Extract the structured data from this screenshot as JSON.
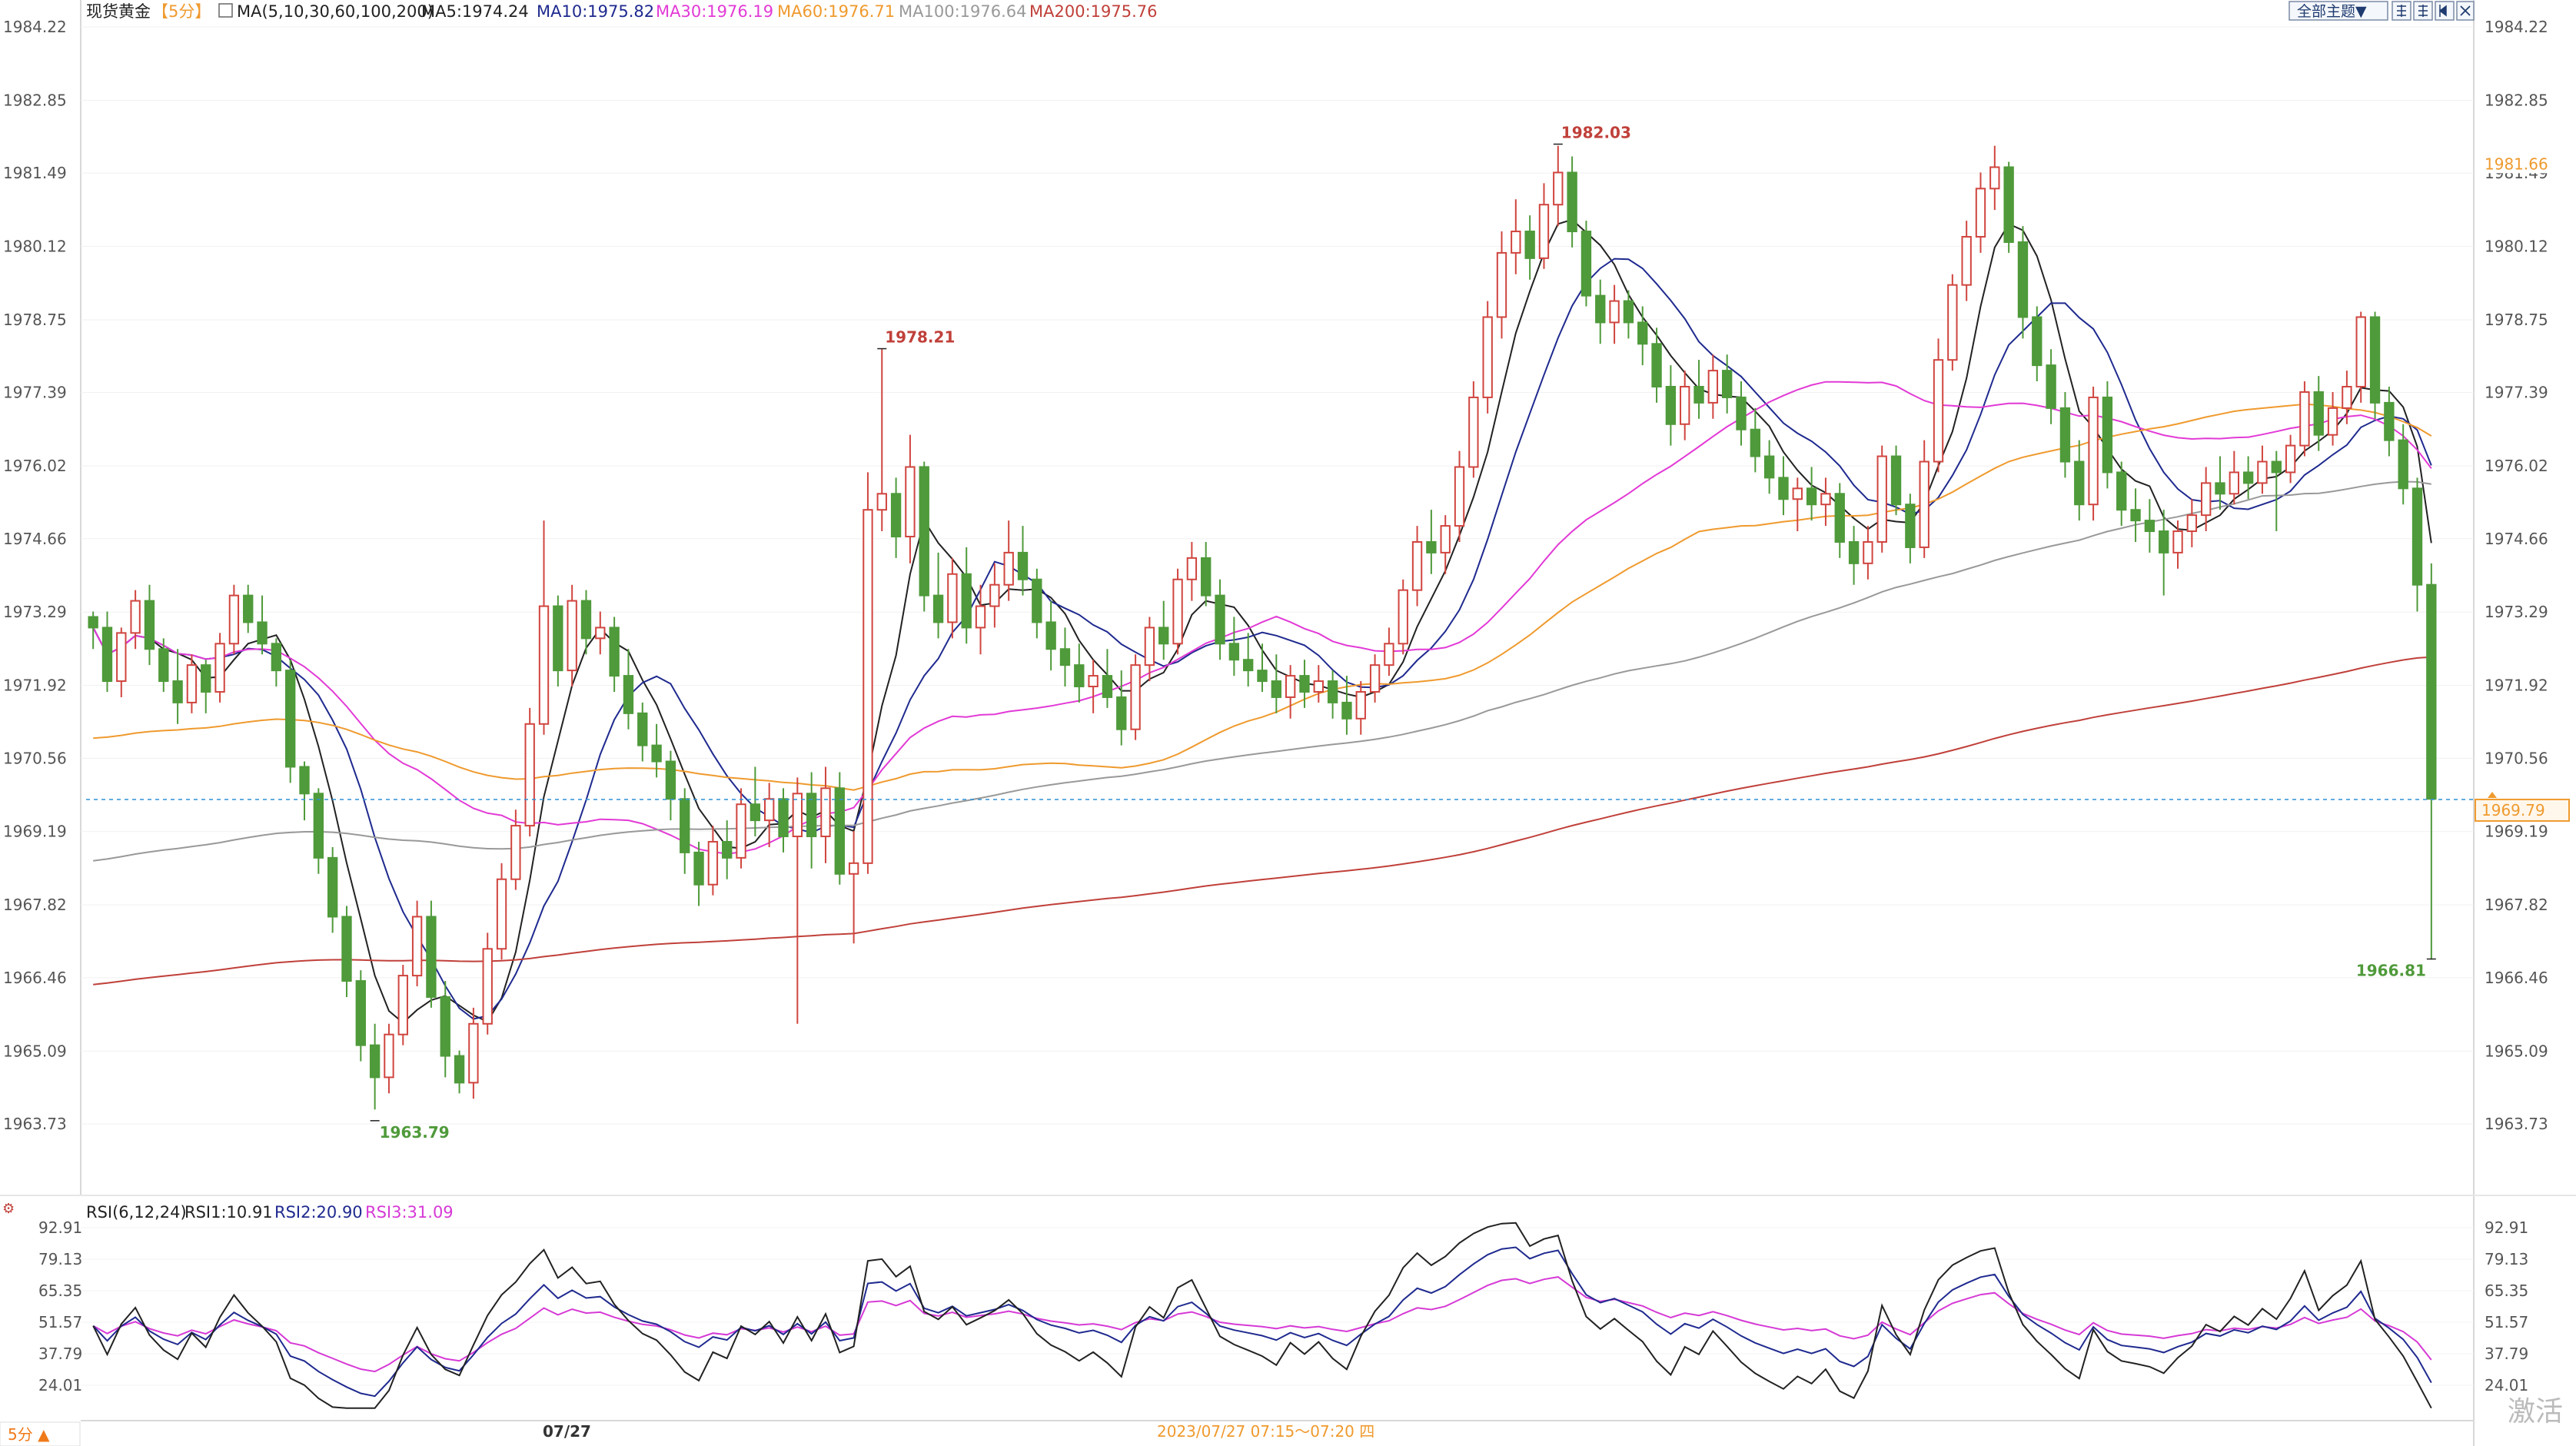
{
  "header": {
    "instrument": "现货黄金",
    "period_tag": "【5分】",
    "ma_label": "MA(5,10,30,60,100,200)",
    "ma5": "MA5:1974.24",
    "ma10": "MA10:1975.82",
    "ma30": "MA30:1976.19",
    "ma60": "MA60:1976.71",
    "ma100": "MA100:1976.64",
    "ma200": "MA200:1975.76"
  },
  "toolbar": {
    "theme_button": "全部主题▼"
  },
  "rsi_header": {
    "label": "RSI(6,12,24)",
    "rsi1": "RSI1:10.91",
    "rsi2": "RSI2:20.90",
    "rsi3": "RSI3:31.09"
  },
  "footer": {
    "period_button": "5分 ▲",
    "date_label": "07/27",
    "crosshair_time": "2023/07/27 07:15～07:20 四"
  },
  "watermark": "激活",
  "colors": {
    "up": "#d0453f",
    "down": "#4f9a3a",
    "ma5": "#222222",
    "ma10": "#1f2a8f",
    "ma30": "#e23ad6",
    "ma60": "#ef9a2e",
    "ma100": "#999999",
    "ma200": "#c0403a",
    "rsi1": "#222222",
    "rsi2": "#1f2a8f",
    "rsi3": "#d63ad6",
    "current_price": "#ef9a2e"
  },
  "chart_data": [
    {
      "type": "candlestick",
      "title": "现货黄金【5分】",
      "y_ticks": [
        1984.22,
        1982.85,
        1981.49,
        1980.12,
        1978.75,
        1977.39,
        1976.02,
        1974.66,
        1973.29,
        1971.92,
        1970.56,
        1969.19,
        1967.82,
        1966.46,
        1965.09,
        1963.73
      ],
      "y_tick_labels": [
        "1984.22",
        "1982.85",
        "1981.49",
        "1980.12",
        "1978.75",
        "1977.39",
        "1976.02",
        "1974.66",
        "1973.29",
        "1971.92",
        "1970.56",
        "1969.19",
        "1967.82",
        "1966.46",
        "1965.09",
        "1963.73"
      ],
      "ylim": [
        1963.3,
        1984.22
      ],
      "annotations": [
        {
          "label": "1978.21",
          "value": 1978.21,
          "kind": "local_high"
        },
        {
          "label": "1982.03",
          "value": 1982.03,
          "kind": "session_high"
        },
        {
          "label": "1963.79",
          "value": 1963.79,
          "kind": "session_low"
        },
        {
          "label": "1966.81",
          "value": 1966.81,
          "kind": "last_low"
        }
      ],
      "right_labels": [
        {
          "label": "1981.66",
          "value": 1981.66,
          "color": "#ef9a2e"
        },
        {
          "label": "1969.79",
          "value": 1969.79,
          "color": "#ef9a2e"
        }
      ],
      "current_price": 1969.79,
      "x_label": "07/27",
      "candles": [
        [
          1973.2,
          1973.3,
          1972.6,
          1973.0
        ],
        [
          1973.0,
          1973.3,
          1971.8,
          1972.0
        ],
        [
          1972.0,
          1973.0,
          1971.7,
          1972.9
        ],
        [
          1972.9,
          1973.7,
          1972.6,
          1973.5
        ],
        [
          1973.5,
          1973.8,
          1972.3,
          1972.6
        ],
        [
          1972.6,
          1972.8,
          1971.8,
          1972.0
        ],
        [
          1972.0,
          1972.6,
          1971.2,
          1971.6
        ],
        [
          1971.6,
          1972.5,
          1971.4,
          1972.3
        ],
        [
          1972.3,
          1972.4,
          1971.4,
          1971.8
        ],
        [
          1971.8,
          1972.9,
          1971.6,
          1972.7
        ],
        [
          1972.7,
          1973.8,
          1972.5,
          1973.6
        ],
        [
          1973.6,
          1973.8,
          1972.9,
          1973.1
        ],
        [
          1973.1,
          1973.6,
          1972.5,
          1972.7
        ],
        [
          1972.7,
          1972.8,
          1971.9,
          1972.2
        ],
        [
          1972.2,
          1972.4,
          1970.1,
          1970.4
        ],
        [
          1970.4,
          1970.5,
          1969.4,
          1969.9
        ],
        [
          1969.9,
          1970.0,
          1968.4,
          1968.7
        ],
        [
          1968.7,
          1968.9,
          1967.3,
          1967.6
        ],
        [
          1967.6,
          1967.8,
          1966.1,
          1966.4
        ],
        [
          1966.4,
          1966.6,
          1964.9,
          1965.2
        ],
        [
          1965.2,
          1965.6,
          1964.0,
          1964.6
        ],
        [
          1964.6,
          1965.6,
          1964.3,
          1965.4
        ],
        [
          1965.4,
          1966.7,
          1965.2,
          1966.5
        ],
        [
          1966.5,
          1967.9,
          1966.3,
          1967.6
        ],
        [
          1967.6,
          1967.9,
          1965.9,
          1966.1
        ],
        [
          1966.1,
          1966.4,
          1964.6,
          1965.0
        ],
        [
          1965.0,
          1965.1,
          1964.3,
          1964.5
        ],
        [
          1964.5,
          1965.9,
          1964.2,
          1965.6
        ],
        [
          1965.6,
          1967.3,
          1965.4,
          1967.0
        ],
        [
          1967.0,
          1968.6,
          1966.8,
          1968.3
        ],
        [
          1968.3,
          1969.6,
          1968.1,
          1969.3
        ],
        [
          1969.3,
          1971.5,
          1969.1,
          1971.2
        ],
        [
          1971.2,
          1975.0,
          1971.0,
          1973.4
        ],
        [
          1973.4,
          1973.6,
          1971.9,
          1972.2
        ],
        [
          1972.2,
          1973.8,
          1971.9,
          1973.5
        ],
        [
          1973.5,
          1973.7,
          1972.5,
          1972.8
        ],
        [
          1972.8,
          1973.3,
          1972.5,
          1973.0
        ],
        [
          1973.0,
          1973.2,
          1971.8,
          1972.1
        ],
        [
          1972.1,
          1972.6,
          1971.1,
          1971.4
        ],
        [
          1971.4,
          1971.6,
          1970.5,
          1970.8
        ],
        [
          1970.8,
          1971.2,
          1970.2,
          1970.5
        ],
        [
          1970.5,
          1970.7,
          1969.4,
          1969.8
        ],
        [
          1969.8,
          1970.0,
          1968.4,
          1968.8
        ],
        [
          1968.8,
          1969.0,
          1967.8,
          1968.2
        ],
        [
          1968.2,
          1969.3,
          1968.0,
          1969.0
        ],
        [
          1969.0,
          1969.4,
          1968.3,
          1968.7
        ],
        [
          1968.7,
          1970.0,
          1968.5,
          1969.7
        ],
        [
          1969.7,
          1970.4,
          1969.1,
          1969.4
        ],
        [
          1969.4,
          1970.1,
          1968.9,
          1969.8
        ],
        [
          1969.8,
          1970.0,
          1968.8,
          1969.1
        ],
        [
          1969.1,
          1970.2,
          1965.6,
          1969.9
        ],
        [
          1969.9,
          1970.3,
          1968.5,
          1969.1
        ],
        [
          1969.1,
          1970.4,
          1968.6,
          1970.0
        ],
        [
          1970.0,
          1970.3,
          1968.2,
          1968.4
        ],
        [
          1968.4,
          1969.2,
          1967.1,
          1968.6
        ],
        [
          1968.6,
          1975.9,
          1968.4,
          1975.2
        ],
        [
          1975.2,
          1978.2,
          1974.8,
          1975.5
        ],
        [
          1975.5,
          1975.8,
          1974.3,
          1974.7
        ],
        [
          1974.7,
          1976.6,
          1974.2,
          1976.0
        ],
        [
          1976.0,
          1976.1,
          1973.3,
          1973.6
        ],
        [
          1973.6,
          1974.4,
          1972.8,
          1973.1
        ],
        [
          1973.1,
          1974.3,
          1972.8,
          1974.0
        ],
        [
          1974.0,
          1974.5,
          1972.7,
          1973.0
        ],
        [
          1973.0,
          1973.8,
          1972.5,
          1973.4
        ],
        [
          1973.4,
          1974.2,
          1973.0,
          1973.8
        ],
        [
          1973.8,
          1975.0,
          1973.5,
          1974.4
        ],
        [
          1974.4,
          1974.9,
          1973.6,
          1973.9
        ],
        [
          1973.9,
          1974.1,
          1972.8,
          1973.1
        ],
        [
          1973.1,
          1973.5,
          1972.2,
          1972.6
        ],
        [
          1972.6,
          1973.0,
          1971.9,
          1972.3
        ],
        [
          1972.3,
          1972.7,
          1971.6,
          1971.9
        ],
        [
          1971.9,
          1972.4,
          1971.4,
          1972.1
        ],
        [
          1972.1,
          1972.6,
          1971.5,
          1971.7
        ],
        [
          1971.7,
          1972.2,
          1970.8,
          1971.1
        ],
        [
          1971.1,
          1972.5,
          1970.9,
          1972.3
        ],
        [
          1972.3,
          1973.2,
          1972.0,
          1973.0
        ],
        [
          1973.0,
          1973.5,
          1972.4,
          1972.7
        ],
        [
          1972.7,
          1974.1,
          1972.5,
          1973.9
        ],
        [
          1973.9,
          1974.6,
          1973.5,
          1974.3
        ],
        [
          1974.3,
          1974.6,
          1973.4,
          1973.6
        ],
        [
          1973.6,
          1973.9,
          1972.4,
          1972.7
        ],
        [
          1972.7,
          1973.2,
          1972.1,
          1972.4
        ],
        [
          1972.4,
          1972.9,
          1971.9,
          1972.2
        ],
        [
          1972.2,
          1972.7,
          1971.8,
          1972.0
        ],
        [
          1972.0,
          1972.5,
          1971.4,
          1971.7
        ],
        [
          1971.7,
          1972.3,
          1971.3,
          1972.1
        ],
        [
          1972.1,
          1972.4,
          1971.5,
          1971.8
        ],
        [
          1971.8,
          1972.3,
          1971.6,
          1972.0
        ],
        [
          1972.0,
          1972.2,
          1971.3,
          1971.6
        ],
        [
          1971.6,
          1972.1,
          1971.0,
          1971.3
        ],
        [
          1971.3,
          1972.0,
          1971.0,
          1971.8
        ],
        [
          1971.8,
          1972.5,
          1971.6,
          1972.3
        ],
        [
          1972.3,
          1973.0,
          1972.1,
          1972.7
        ],
        [
          1972.7,
          1973.9,
          1972.5,
          1973.7
        ],
        [
          1973.7,
          1974.9,
          1973.4,
          1974.6
        ],
        [
          1974.6,
          1975.2,
          1974.0,
          1974.4
        ],
        [
          1974.4,
          1975.1,
          1974.0,
          1974.9
        ],
        [
          1974.9,
          1976.3,
          1974.6,
          1976.0
        ],
        [
          1976.0,
          1977.6,
          1975.8,
          1977.3
        ],
        [
          1977.3,
          1979.1,
          1977.0,
          1978.8
        ],
        [
          1978.8,
          1980.4,
          1978.4,
          1980.0
        ],
        [
          1980.0,
          1981.0,
          1979.6,
          1980.4
        ],
        [
          1980.4,
          1980.7,
          1979.5,
          1979.9
        ],
        [
          1979.9,
          1981.3,
          1979.7,
          1980.9
        ],
        [
          1980.9,
          1982.0,
          1980.5,
          1981.5
        ],
        [
          1981.5,
          1981.8,
          1980.1,
          1980.4
        ],
        [
          1980.4,
          1980.6,
          1979.0,
          1979.2
        ],
        [
          1979.2,
          1979.5,
          1978.3,
          1978.7
        ],
        [
          1978.7,
          1979.4,
          1978.3,
          1979.1
        ],
        [
          1979.1,
          1979.3,
          1978.4,
          1978.7
        ],
        [
          1978.7,
          1979.0,
          1977.9,
          1978.3
        ],
        [
          1978.3,
          1978.6,
          1977.2,
          1977.5
        ],
        [
          1977.5,
          1977.9,
          1976.4,
          1976.8
        ],
        [
          1976.8,
          1977.8,
          1976.5,
          1977.5
        ],
        [
          1977.5,
          1978.0,
          1976.9,
          1977.2
        ],
        [
          1977.2,
          1978.1,
          1976.9,
          1977.8
        ],
        [
          1977.8,
          1978.1,
          1977.0,
          1977.3
        ],
        [
          1977.3,
          1977.6,
          1976.4,
          1976.7
        ],
        [
          1976.7,
          1977.1,
          1975.9,
          1976.2
        ],
        [
          1976.2,
          1976.5,
          1975.5,
          1975.8
        ],
        [
          1975.8,
          1976.2,
          1975.1,
          1975.4
        ],
        [
          1975.4,
          1975.8,
          1974.8,
          1975.6
        ],
        [
          1975.6,
          1976.0,
          1975.0,
          1975.3
        ],
        [
          1975.3,
          1975.8,
          1974.9,
          1975.5
        ],
        [
          1975.5,
          1975.7,
          1974.3,
          1974.6
        ],
        [
          1974.6,
          1974.9,
          1973.8,
          1974.2
        ],
        [
          1974.2,
          1974.9,
          1973.9,
          1974.6
        ],
        [
          1974.6,
          1976.4,
          1974.4,
          1976.2
        ],
        [
          1976.2,
          1976.4,
          1975.1,
          1975.3
        ],
        [
          1975.3,
          1975.5,
          1974.2,
          1974.5
        ],
        [
          1974.5,
          1976.5,
          1974.3,
          1976.1
        ],
        [
          1976.1,
          1978.4,
          1975.9,
          1978.0
        ],
        [
          1978.0,
          1979.6,
          1977.8,
          1979.4
        ],
        [
          1979.4,
          1980.6,
          1979.1,
          1980.3
        ],
        [
          1980.3,
          1981.5,
          1980.0,
          1981.2
        ],
        [
          1981.2,
          1982.0,
          1980.8,
          1981.6
        ],
        [
          1981.6,
          1981.7,
          1980.0,
          1980.2
        ],
        [
          1980.2,
          1980.5,
          1978.4,
          1978.8
        ],
        [
          1978.8,
          1979.0,
          1977.6,
          1977.9
        ],
        [
          1977.9,
          1978.2,
          1976.8,
          1977.1
        ],
        [
          1977.1,
          1977.4,
          1975.8,
          1976.1
        ],
        [
          1976.1,
          1976.5,
          1975.0,
          1975.3
        ],
        [
          1975.3,
          1977.5,
          1975.0,
          1977.3
        ],
        [
          1977.3,
          1977.6,
          1975.6,
          1975.9
        ],
        [
          1975.9,
          1976.1,
          1974.9,
          1975.2
        ],
        [
          1975.2,
          1975.6,
          1974.6,
          1975.0
        ],
        [
          1975.0,
          1975.4,
          1974.4,
          1974.8
        ],
        [
          1974.8,
          1975.2,
          1973.6,
          1974.4
        ],
        [
          1974.4,
          1975.0,
          1974.1,
          1974.8
        ],
        [
          1974.8,
          1975.4,
          1974.5,
          1975.1
        ],
        [
          1975.1,
          1976.0,
          1974.8,
          1975.7
        ],
        [
          1975.7,
          1976.2,
          1975.2,
          1975.5
        ],
        [
          1975.5,
          1976.3,
          1975.3,
          1975.9
        ],
        [
          1975.9,
          1976.2,
          1975.4,
          1975.7
        ],
        [
          1975.7,
          1976.4,
          1975.5,
          1976.1
        ],
        [
          1976.1,
          1976.3,
          1974.8,
          1975.9
        ],
        [
          1975.9,
          1976.6,
          1975.7,
          1976.4
        ],
        [
          1976.4,
          1977.6,
          1976.2,
          1977.4
        ],
        [
          1977.4,
          1977.7,
          1976.3,
          1976.6
        ],
        [
          1976.6,
          1977.4,
          1976.4,
          1977.1
        ],
        [
          1977.1,
          1977.8,
          1976.8,
          1977.5
        ],
        [
          1977.5,
          1978.9,
          1977.2,
          1978.8
        ],
        [
          1978.8,
          1978.9,
          1976.9,
          1977.2
        ],
        [
          1977.2,
          1977.5,
          1976.2,
          1976.5
        ],
        [
          1976.5,
          1976.8,
          1975.3,
          1975.6
        ],
        [
          1975.6,
          1975.8,
          1973.3,
          1973.8
        ],
        [
          1973.8,
          1974.2,
          1966.8,
          1969.8
        ]
      ],
      "series": [
        {
          "name": "MA5",
          "color": "#222222"
        },
        {
          "name": "MA10",
          "color": "#1f2a8f"
        },
        {
          "name": "MA30",
          "color": "#e23ad6"
        },
        {
          "name": "MA60",
          "color": "#ef9a2e"
        },
        {
          "name": "MA100",
          "color": "#999999"
        },
        {
          "name": "MA200",
          "color": "#c0403a"
        }
      ]
    },
    {
      "type": "line",
      "title": "RSI(6,12,24)",
      "y_ticks": [
        92.91,
        79.13,
        65.35,
        51.57,
        37.79,
        24.01
      ],
      "y_tick_labels": [
        "92.91",
        "79.13",
        "65.35",
        "51.57",
        "37.79",
        "24.01"
      ],
      "ylim": [
        13,
        96
      ],
      "series": [
        {
          "name": "RSI1",
          "color": "#222222",
          "last": 10.91
        },
        {
          "name": "RSI2",
          "color": "#1f2a8f",
          "last": 20.9
        },
        {
          "name": "RSI3",
          "color": "#d63ad6",
          "last": 31.09
        }
      ]
    }
  ]
}
